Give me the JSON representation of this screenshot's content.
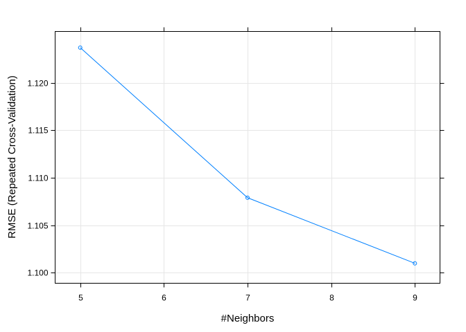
{
  "chart_data": {
    "type": "line",
    "xlabel": "#Neighbors",
    "ylabel": "RMSE (Repeated Cross-Validation)",
    "xlim": [
      4.7,
      9.3
    ],
    "ylim": [
      1.0989,
      1.1254
    ],
    "x_ticks": [
      5,
      6,
      7,
      8,
      9
    ],
    "x_tick_labels": [
      "5",
      "6",
      "7",
      "8",
      "9"
    ],
    "y_ticks": [
      1.1,
      1.105,
      1.11,
      1.115,
      1.12
    ],
    "y_tick_labels": [
      "1.100",
      "1.105",
      "1.110",
      "1.115",
      "1.120"
    ],
    "grid": true,
    "series": [
      {
        "color": "#0080ff",
        "marker": "circle",
        "x": [
          5,
          7,
          9
        ],
        "y": [
          1.1237,
          1.1079,
          1.101
        ]
      }
    ]
  }
}
